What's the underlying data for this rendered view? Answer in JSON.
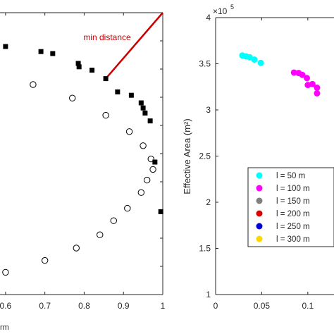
{
  "chart_data": [
    {
      "type": "scatter",
      "xlim": [
        0.55,
        1.0
      ],
      "ylim": [
        0,
        1
      ],
      "grid": false,
      "xticks": [
        "0.6",
        "0.7",
        "0.8",
        "0.9",
        "1"
      ],
      "xlabel_partial": "rm",
      "series": [
        {
          "marker": "filled-square",
          "color": "#000000",
          "points": [
            [
              0.6,
              0.88
            ],
            [
              0.69,
              0.862
            ],
            [
              0.72,
              0.855
            ],
            [
              0.785,
              0.82
            ],
            [
              0.787,
              0.808
            ],
            [
              0.82,
              0.796
            ],
            [
              0.855,
              0.766
            ],
            [
              0.885,
              0.719
            ],
            [
              0.92,
              0.707
            ],
            [
              0.945,
              0.68
            ],
            [
              0.95,
              0.662
            ],
            [
              0.955,
              0.644
            ],
            [
              0.968,
              0.616
            ],
            [
              0.98,
              0.47
            ],
            [
              0.995,
              0.294
            ]
          ]
        },
        {
          "marker": "open-circle",
          "color": "#000000",
          "points": [
            [
              0.56,
              0.793
            ],
            [
              0.67,
              0.745
            ],
            [
              0.77,
              0.697
            ],
            [
              0.855,
              0.636
            ],
            [
              0.915,
              0.578
            ],
            [
              0.95,
              0.528
            ],
            [
              0.97,
              0.481
            ],
            [
              0.975,
              0.444
            ],
            [
              0.96,
              0.406
            ],
            [
              0.945,
              0.362
            ],
            [
              0.91,
              0.306
            ],
            [
              0.875,
              0.262
            ],
            [
              0.84,
              0.212
            ],
            [
              0.78,
              0.165
            ],
            [
              0.7,
              0.121
            ],
            [
              0.6,
              0.079
            ]
          ]
        }
      ],
      "annotation": {
        "text": "min distance",
        "color": "#cc0000",
        "line_from": [
          0.855,
          0.766
        ],
        "line_to": [
          1.0,
          1.0
        ]
      }
    },
    {
      "type": "scatter",
      "ylabel": "Effective Area (m²)",
      "y_exponent_label": "×10",
      "y_exponent": "5",
      "xlim": [
        0,
        0.15
      ],
      "ylim": [
        1,
        4
      ],
      "xticks": [
        "0",
        "0.05",
        "0.1"
      ],
      "yticks": [
        "1",
        "1.5",
        "2",
        "2.5",
        "3",
        "3.5",
        "4"
      ],
      "grid": false,
      "legend_location": "lower-right",
      "series": [
        {
          "name": "l = 50 m",
          "color": "#00ffff",
          "points": [
            [
              0.029,
              3.59
            ],
            [
              0.033,
              3.58
            ],
            [
              0.037,
              3.57
            ],
            [
              0.042,
              3.545
            ],
            [
              0.049,
              3.51
            ]
          ]
        },
        {
          "name": "l = 100 m",
          "color": "#ff00ff",
          "points": [
            [
              0.085,
              3.405
            ],
            [
              0.09,
              3.4
            ],
            [
              0.094,
              3.38
            ],
            [
              0.099,
              3.345
            ],
            [
              0.1,
              3.27
            ],
            [
              0.105,
              3.28
            ],
            [
              0.11,
              3.24
            ],
            [
              0.11,
              3.18
            ]
          ]
        },
        {
          "name": "l = 150 m",
          "color": "#808080",
          "points": []
        },
        {
          "name": "l = 200 m",
          "color": "#dd0000",
          "points": []
        },
        {
          "name": "l = 250 m",
          "color": "#0000dd",
          "points": []
        },
        {
          "name": "l = 300 m",
          "color": "#ffd700",
          "points": []
        }
      ]
    }
  ]
}
